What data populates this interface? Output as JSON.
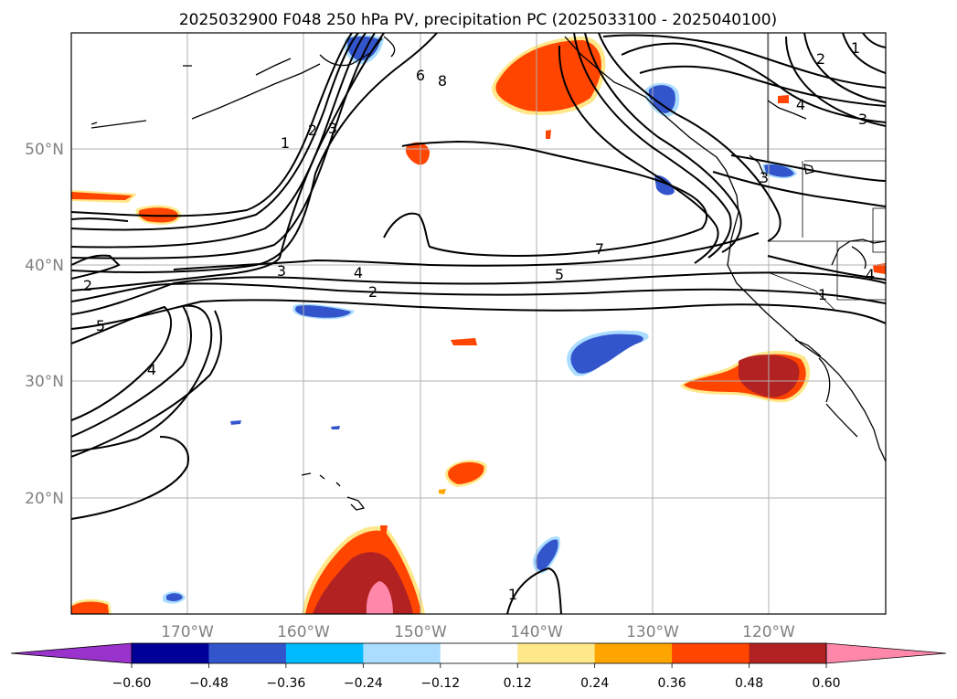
{
  "title": "2025032900 F048 250 hPa PV, precipitation PC (2025033100 - 2025040100)",
  "lat_labels": [
    "50°N",
    "40°N",
    "30°N",
    "20°N"
  ],
  "lon_labels": [
    "170°W",
    "160°W",
    "150°W",
    "140°W",
    "130°W",
    "120°W"
  ],
  "colorbar": {
    "ticks": [
      "−0.60",
      "−0.48",
      "−0.36",
      "−0.24",
      "−0.12",
      "0.12",
      "0.24",
      "0.36",
      "0.48",
      "0.60"
    ],
    "colors": [
      "#9933cc",
      "#000099",
      "#3355cc",
      "#00bbff",
      "#aaddff",
      "#ffffff",
      "#ffe88a",
      "#ffa500",
      "#ff4500",
      "#b22222",
      "#ff88aa"
    ]
  },
  "contour_labels": [
    "1",
    "2",
    "3",
    "6",
    "8",
    "2",
    "1",
    "4",
    "3",
    "3",
    "2",
    "5",
    "4",
    "7",
    "5",
    "4",
    "3",
    "2",
    "1",
    "4",
    "1"
  ]
}
